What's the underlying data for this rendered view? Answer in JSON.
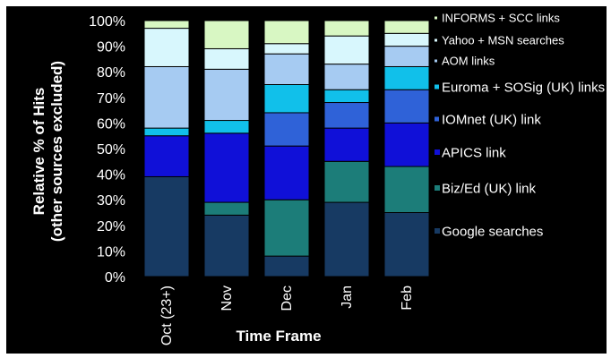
{
  "chart_data": {
    "type": "bar",
    "stacked": true,
    "xlabel": "Time Frame",
    "ylabel": "Relative % of Hits",
    "ylabel_sub": "(other sources excluded)",
    "ylim": [
      0,
      100
    ],
    "yticks": [
      "0%",
      "10%",
      "20%",
      "30%",
      "40%",
      "50%",
      "60%",
      "70%",
      "80%",
      "90%",
      "100%"
    ],
    "categories": [
      "Oct (23+)",
      "Nov",
      "Dec",
      "Jan",
      "Feb"
    ],
    "legend_position": "right",
    "series": [
      {
        "name": "Google searches",
        "color": "#173a63",
        "values": [
          39,
          24,
          8,
          29,
          25
        ]
      },
      {
        "name": "Biz/Ed (UK) link",
        "color": "#1c7d79",
        "values": [
          0,
          5,
          22,
          16,
          18
        ]
      },
      {
        "name": "APICS link",
        "color": "#1010d8",
        "values": [
          16,
          27,
          21,
          13,
          17
        ]
      },
      {
        "name": "IOMnet (UK) link",
        "color": "#2f62d8",
        "values": [
          0,
          0,
          13,
          10,
          13
        ]
      },
      {
        "name": "Euroma + SOSig (UK) links",
        "color": "#11c0ea",
        "values": [
          3,
          5,
          11,
          5,
          9
        ]
      },
      {
        "name": "AOM links",
        "color": "#a6cbf2",
        "values": [
          24,
          20,
          12,
          10,
          8
        ]
      },
      {
        "name": "Yahoo + MSN searches",
        "color": "#d8f7fd",
        "values": [
          15,
          8,
          4,
          11,
          5
        ]
      },
      {
        "name": "INFORMS + SCC links",
        "color": "#d8f7c3",
        "values": [
          3,
          11,
          9,
          6,
          5
        ]
      }
    ]
  }
}
